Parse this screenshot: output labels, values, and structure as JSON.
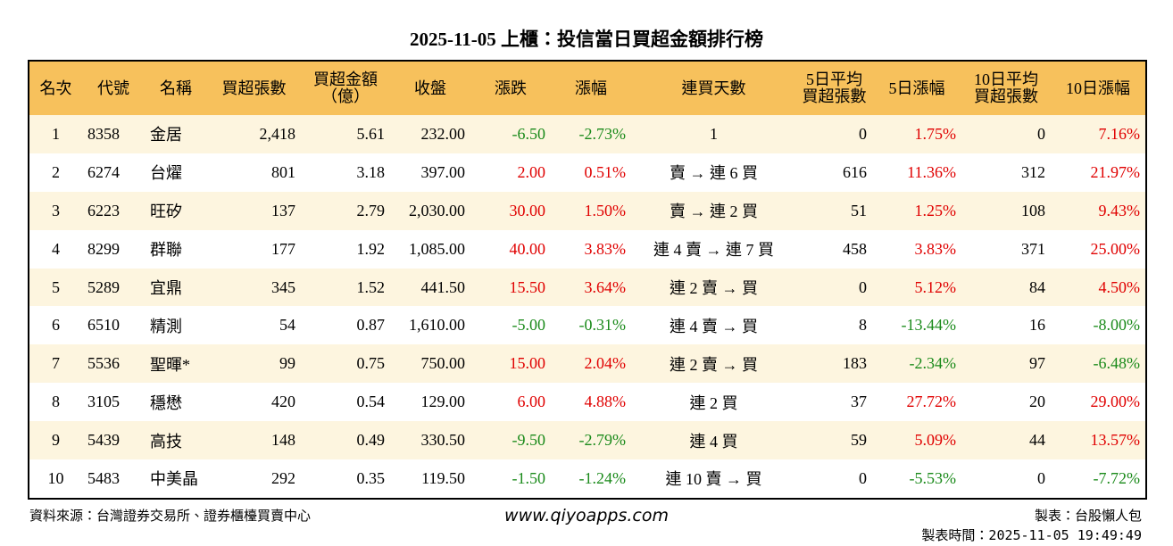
{
  "header": {
    "title": "2025-11-05 上櫃：投信當日買超金額排行榜"
  },
  "table": {
    "headers": [
      "名次",
      "代號",
      "名稱",
      "買超張數",
      "買超金額\n（億）",
      "收盤",
      "漲跌",
      "漲幅",
      "連買天數",
      "5日平均\n買超張數",
      "5日漲幅",
      "10日平均\n買超張數",
      "10日漲幅"
    ],
    "rows": [
      [
        "1",
        "8358",
        "金居",
        "2,418",
        "5.61",
        "232.00",
        "-6.50",
        "-2.73%",
        "1",
        "0",
        "1.75%",
        "0",
        "7.16%"
      ],
      [
        "2",
        "6274",
        "台燿",
        "801",
        "3.18",
        "397.00",
        "2.00",
        "0.51%",
        "賣 → 連 6 買",
        "616",
        "11.36%",
        "312",
        "21.97%"
      ],
      [
        "3",
        "6223",
        "旺矽",
        "137",
        "2.79",
        "2,030.00",
        "30.00",
        "1.50%",
        "賣 → 連 2 買",
        "51",
        "1.25%",
        "108",
        "9.43%"
      ],
      [
        "4",
        "8299",
        "群聯",
        "177",
        "1.92",
        "1,085.00",
        "40.00",
        "3.83%",
        "連 4 賣 → 連 7 買",
        "458",
        "3.83%",
        "371",
        "25.00%"
      ],
      [
        "5",
        "5289",
        "宜鼎",
        "345",
        "1.52",
        "441.50",
        "15.50",
        "3.64%",
        "連 2 賣 → 買",
        "0",
        "5.12%",
        "84",
        "4.50%"
      ],
      [
        "6",
        "6510",
        "精測",
        "54",
        "0.87",
        "1,610.00",
        "-5.00",
        "-0.31%",
        "連 4 賣 → 買",
        "8",
        "-13.44%",
        "16",
        "-8.00%"
      ],
      [
        "7",
        "5536",
        "聖暉*",
        "99",
        "0.75",
        "750.00",
        "15.00",
        "2.04%",
        "連 2 賣 → 買",
        "183",
        "-2.34%",
        "97",
        "-6.48%"
      ],
      [
        "8",
        "3105",
        "穩懋",
        "420",
        "0.54",
        "129.00",
        "6.00",
        "4.88%",
        "連 2 買",
        "37",
        "27.72%",
        "20",
        "29.00%"
      ],
      [
        "9",
        "5439",
        "高技",
        "148",
        "0.49",
        "330.50",
        "-9.50",
        "-2.79%",
        "連 4 買",
        "59",
        "5.09%",
        "44",
        "13.57%"
      ],
      [
        "10",
        "5483",
        "中美晶",
        "292",
        "0.35",
        "119.50",
        "-1.50",
        "-1.24%",
        "連 10 賣 → 買",
        "0",
        "-5.53%",
        "0",
        "-7.72%"
      ]
    ]
  },
  "footer": {
    "source": "資料來源：台灣證券交易所、證券櫃檯買賣中心",
    "url": "www.qiyoapps.com",
    "maker": "製表：台股懶人包",
    "time": "製表時間：2025-11-05 19:49:49"
  }
}
